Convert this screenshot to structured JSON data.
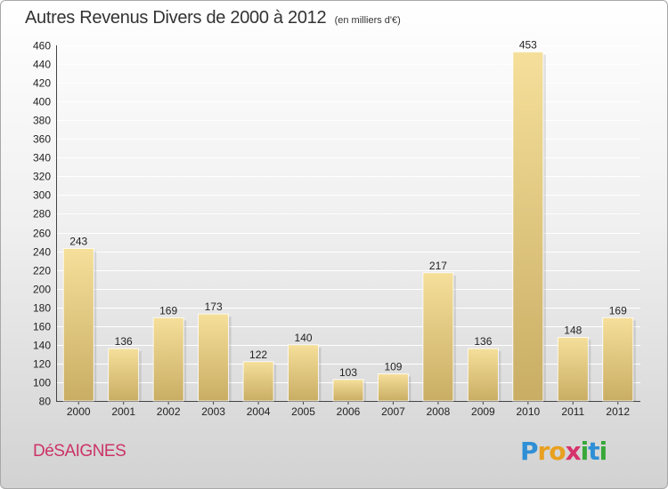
{
  "title": "Autres Revenus Divers de 2000 à 2012",
  "subtitle": "(en milliers d'€)",
  "commune": "DéSAIGNES",
  "logo": {
    "letters": [
      "P",
      "r",
      "o",
      "x",
      "i",
      "t",
      "i"
    ],
    "colors": [
      "#2f8fd6",
      "#e8a020",
      "#e8a020",
      "#d6336c",
      "#38a838",
      "#2f8fd6",
      "#38a838"
    ]
  },
  "colors": {
    "bar_light": "#f5df9a",
    "bar_dark": "#c9ad64",
    "grid": "#ffffff",
    "title": "#333333",
    "commune": "#cc3366"
  },
  "chart_data": {
    "type": "bar",
    "title": "Autres Revenus Divers de 2000 à 2012",
    "subtitle": "(en milliers d'€)",
    "categories": [
      "2000",
      "2001",
      "2002",
      "2003",
      "2004",
      "2005",
      "2006",
      "2007",
      "2008",
      "2009",
      "2010",
      "2011",
      "2012"
    ],
    "values": [
      243,
      136,
      169,
      173,
      122,
      140,
      103,
      109,
      217,
      136,
      453,
      148,
      169
    ],
    "ylim": [
      80,
      460
    ],
    "yticks": [
      80,
      100,
      120,
      140,
      160,
      180,
      200,
      220,
      240,
      260,
      280,
      300,
      320,
      340,
      360,
      380,
      400,
      420,
      440,
      460
    ],
    "grid": true
  }
}
